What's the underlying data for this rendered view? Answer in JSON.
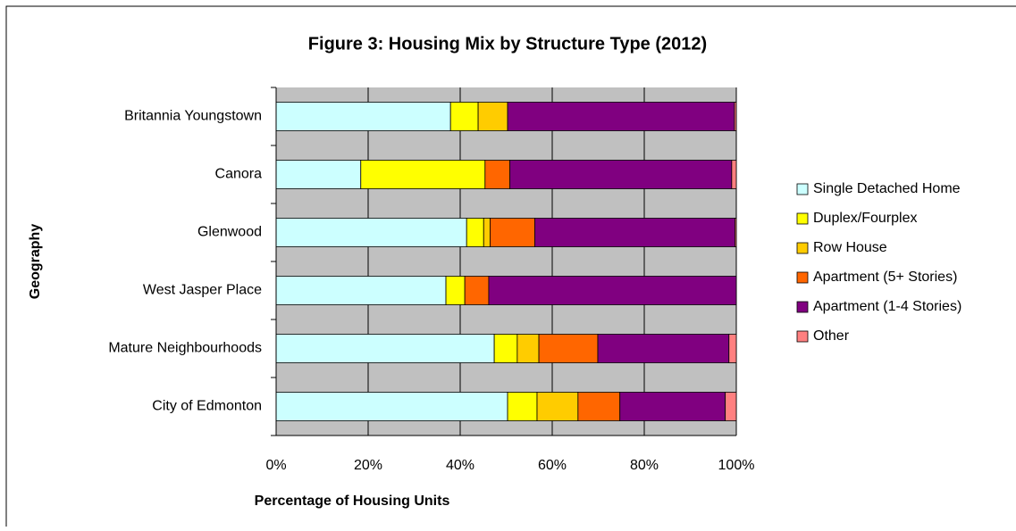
{
  "chart_data": {
    "type": "bar",
    "orientation": "horizontal",
    "stacked": true,
    "title": "Figure 3: Housing Mix by Structure Type (2012)",
    "x_label": "Percentage of Housing Units",
    "y_label": "Geography",
    "categories": [
      "Britannia Youngstown",
      "Canora",
      "Glenwood",
      "West Jasper Place",
      "Mature Neighbourhoods",
      "City of Edmonton"
    ],
    "series": [
      {
        "name": "Single Detached Home",
        "color": "#ccffff",
        "values": [
          37.9,
          18.4,
          41.4,
          36.9,
          47.4,
          50.3
        ]
      },
      {
        "name": "Duplex/Fourplex",
        "color": "#ffff00",
        "values": [
          6.0,
          27.0,
          3.7,
          4.1,
          5.0,
          6.4
        ]
      },
      {
        "name": "Row House",
        "color": "#ffcc00",
        "values": [
          6.4,
          0,
          1.4,
          0,
          4.7,
          8.9
        ]
      },
      {
        "name": "Apartment (5+ Stories)",
        "color": "#ff6600",
        "values": [
          0,
          5.4,
          9.7,
          5.2,
          12.8,
          9.1
        ]
      },
      {
        "name": "Apartment (1-4 Stories)",
        "color": "#800080",
        "values": [
          49.3,
          48.2,
          43.5,
          53.8,
          28.5,
          22.9
        ]
      },
      {
        "name": "Other",
        "color": "#ff8080",
        "values": [
          0.4,
          1.0,
          0.3,
          0,
          1.6,
          2.4
        ]
      }
    ],
    "xlim": [
      0,
      100
    ],
    "xticks": [
      {
        "value": 0,
        "label": "0%"
      },
      {
        "value": 20,
        "label": "20%"
      },
      {
        "value": 40,
        "label": "40%"
      },
      {
        "value": 60,
        "label": "60%"
      },
      {
        "value": 80,
        "label": "80%"
      },
      {
        "value": 100,
        "label": "100%"
      }
    ],
    "grid": true,
    "legend": "right"
  }
}
